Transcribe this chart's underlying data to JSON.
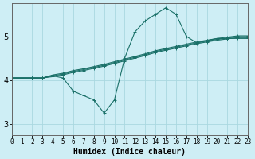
{
  "xlabel": "Humidex (Indice chaleur)",
  "bg_color": "#ceeef5",
  "line_color": "#1a7068",
  "grid_color": "#aad8e0",
  "x_ticks": [
    0,
    1,
    2,
    3,
    4,
    5,
    6,
    7,
    8,
    9,
    10,
    11,
    12,
    13,
    14,
    15,
    16,
    17,
    18,
    19,
    20,
    21,
    22,
    23
  ],
  "y_ticks": [
    3,
    4,
    5
  ],
  "xlim": [
    0,
    23
  ],
  "ylim": [
    2.75,
    5.75
  ],
  "band_series": [
    [
      4.05,
      4.05,
      4.05,
      4.05,
      4.08,
      4.12,
      4.18,
      4.22,
      4.27,
      4.32,
      4.38,
      4.44,
      4.5,
      4.56,
      4.63,
      4.68,
      4.73,
      4.78,
      4.83,
      4.87,
      4.91,
      4.94,
      4.97,
      4.97
    ],
    [
      4.05,
      4.05,
      4.05,
      4.05,
      4.1,
      4.14,
      4.2,
      4.24,
      4.29,
      4.34,
      4.4,
      4.46,
      4.52,
      4.58,
      4.65,
      4.7,
      4.75,
      4.8,
      4.85,
      4.89,
      4.93,
      4.96,
      4.99,
      4.99
    ],
    [
      4.05,
      4.05,
      4.05,
      4.05,
      4.12,
      4.16,
      4.22,
      4.26,
      4.31,
      4.36,
      4.42,
      4.48,
      4.54,
      4.6,
      4.67,
      4.72,
      4.77,
      4.82,
      4.87,
      4.91,
      4.95,
      4.98,
      5.01,
      5.01
    ]
  ],
  "wiggly": [
    4.05,
    4.05,
    4.05,
    4.05,
    4.1,
    4.05,
    3.75,
    3.65,
    3.55,
    3.25,
    3.55,
    4.5,
    5.1,
    5.35,
    5.5,
    5.65,
    5.5,
    5.0,
    4.85,
    4.9,
    4.95,
    4.95,
    4.95,
    4.95
  ],
  "x": [
    0,
    1,
    2,
    3,
    4,
    5,
    6,
    7,
    8,
    9,
    10,
    11,
    12,
    13,
    14,
    15,
    16,
    17,
    18,
    19,
    20,
    21,
    22,
    23
  ]
}
